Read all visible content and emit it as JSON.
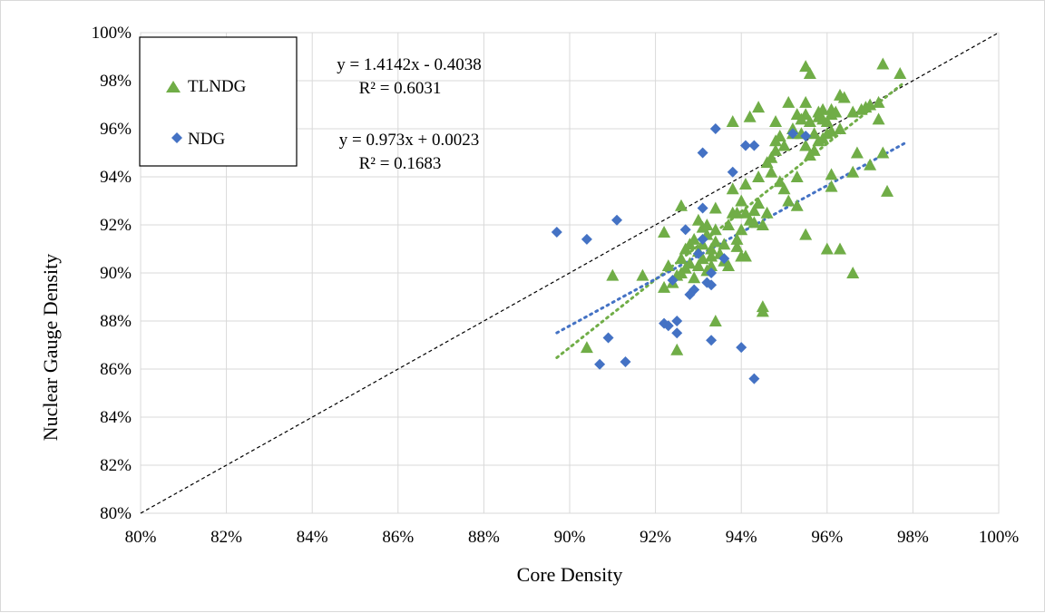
{
  "chart_data": {
    "type": "scatter",
    "xlabel": "Core Density",
    "ylabel": "Nuclear Gauge Density",
    "xlim": [
      0.8,
      1.0
    ],
    "ylim": [
      0.8,
      1.0
    ],
    "x_ticks": [
      "80%",
      "82%",
      "84%",
      "86%",
      "88%",
      "90%",
      "92%",
      "94%",
      "96%",
      "98%",
      "100%"
    ],
    "y_ticks": [
      "80%",
      "82%",
      "84%",
      "86%",
      "88%",
      "90%",
      "92%",
      "94%",
      "96%",
      "98%",
      "100%"
    ],
    "grid": true,
    "legend_position": "top-left",
    "colors": {
      "TLNDG": "#70ad47",
      "NDG": "#4472c4",
      "equality": "#000000"
    },
    "series": [
      {
        "name": "TLNDG",
        "marker": "triangle",
        "trendline": {
          "equation": "y = 1.4142x - 0.4038",
          "r2": "R² = 0.6031",
          "slope": 1.4142,
          "intercept": -0.4038,
          "x_range": [
            0.897,
            0.978
          ]
        },
        "points": [
          [
            0.904,
            0.869
          ],
          [
            0.91,
            0.899
          ],
          [
            0.917,
            0.899
          ],
          [
            0.922,
            0.894
          ],
          [
            0.922,
            0.917
          ],
          [
            0.923,
            0.903
          ],
          [
            0.924,
            0.896
          ],
          [
            0.925,
            0.899
          ],
          [
            0.925,
            0.868
          ],
          [
            0.926,
            0.928
          ],
          [
            0.926,
            0.906
          ],
          [
            0.926,
            0.9
          ],
          [
            0.927,
            0.91
          ],
          [
            0.927,
            0.902
          ],
          [
            0.928,
            0.912
          ],
          [
            0.928,
            0.904
          ],
          [
            0.929,
            0.898
          ],
          [
            0.929,
            0.914
          ],
          [
            0.93,
            0.922
          ],
          [
            0.93,
            0.909
          ],
          [
            0.93,
            0.903
          ],
          [
            0.931,
            0.906
          ],
          [
            0.931,
            0.912
          ],
          [
            0.931,
            0.919
          ],
          [
            0.932,
            0.901
          ],
          [
            0.932,
            0.916
          ],
          [
            0.932,
            0.92
          ],
          [
            0.933,
            0.907
          ],
          [
            0.933,
            0.91
          ],
          [
            0.933,
            0.903
          ],
          [
            0.934,
            0.913
          ],
          [
            0.934,
            0.927
          ],
          [
            0.934,
            0.918
          ],
          [
            0.934,
            0.88
          ],
          [
            0.935,
            0.908
          ],
          [
            0.936,
            0.905
          ],
          [
            0.936,
            0.912
          ],
          [
            0.937,
            0.903
          ],
          [
            0.937,
            0.92
          ],
          [
            0.938,
            0.925
          ],
          [
            0.938,
            0.963
          ],
          [
            0.938,
            0.935
          ],
          [
            0.939,
            0.911
          ],
          [
            0.939,
            0.914
          ],
          [
            0.939,
            0.925
          ],
          [
            0.94,
            0.907
          ],
          [
            0.94,
            0.918
          ],
          [
            0.94,
            0.93
          ],
          [
            0.941,
            0.925
          ],
          [
            0.941,
            0.907
          ],
          [
            0.941,
            0.937
          ],
          [
            0.942,
            0.965
          ],
          [
            0.942,
            0.922
          ],
          [
            0.943,
            0.921
          ],
          [
            0.943,
            0.926
          ],
          [
            0.944,
            0.929
          ],
          [
            0.944,
            0.969
          ],
          [
            0.944,
            0.94
          ],
          [
            0.945,
            0.92
          ],
          [
            0.945,
            0.886
          ],
          [
            0.945,
            0.884
          ],
          [
            0.946,
            0.925
          ],
          [
            0.946,
            0.946
          ],
          [
            0.947,
            0.948
          ],
          [
            0.947,
            0.942
          ],
          [
            0.948,
            0.951
          ],
          [
            0.948,
            0.955
          ],
          [
            0.948,
            0.963
          ],
          [
            0.949,
            0.957
          ],
          [
            0.949,
            0.938
          ],
          [
            0.95,
            0.935
          ],
          [
            0.95,
            0.953
          ],
          [
            0.951,
            0.93
          ],
          [
            0.951,
            0.971
          ],
          [
            0.952,
            0.958
          ],
          [
            0.952,
            0.96
          ],
          [
            0.953,
            0.928
          ],
          [
            0.953,
            0.94
          ],
          [
            0.953,
            0.966
          ],
          [
            0.954,
            0.958
          ],
          [
            0.954,
            0.964
          ],
          [
            0.955,
            0.916
          ],
          [
            0.955,
            0.971
          ],
          [
            0.955,
            0.966
          ],
          [
            0.955,
            0.953
          ],
          [
            0.955,
            0.986
          ],
          [
            0.956,
            0.983
          ],
          [
            0.956,
            0.949
          ],
          [
            0.956,
            0.963
          ],
          [
            0.957,
            0.951
          ],
          [
            0.957,
            0.958
          ],
          [
            0.958,
            0.967
          ],
          [
            0.958,
            0.965
          ],
          [
            0.958,
            0.955
          ],
          [
            0.959,
            0.968
          ],
          [
            0.959,
            0.964
          ],
          [
            0.959,
            0.956
          ],
          [
            0.96,
            0.91
          ],
          [
            0.96,
            0.958
          ],
          [
            0.96,
            0.963
          ],
          [
            0.961,
            0.966
          ],
          [
            0.961,
            0.968
          ],
          [
            0.961,
            0.959
          ],
          [
            0.961,
            0.941
          ],
          [
            0.961,
            0.936
          ],
          [
            0.962,
            0.967
          ],
          [
            0.963,
            0.96
          ],
          [
            0.963,
            0.91
          ],
          [
            0.963,
            0.974
          ],
          [
            0.964,
            0.973
          ],
          [
            0.966,
            0.967
          ],
          [
            0.966,
            0.942
          ],
          [
            0.966,
            0.9
          ],
          [
            0.967,
            0.95
          ],
          [
            0.968,
            0.968
          ],
          [
            0.969,
            0.969
          ],
          [
            0.97,
            0.945
          ],
          [
            0.97,
            0.97
          ],
          [
            0.972,
            0.971
          ],
          [
            0.972,
            0.964
          ],
          [
            0.973,
            0.987
          ],
          [
            0.973,
            0.95
          ],
          [
            0.974,
            0.934
          ],
          [
            0.977,
            0.983
          ]
        ]
      },
      {
        "name": "NDG",
        "marker": "diamond",
        "trendline": {
          "equation": "y = 0.973x + 0.0023",
          "r2": "R² = 0.1683",
          "slope": 0.973,
          "intercept": 0.0023,
          "x_range": [
            0.897,
            0.978
          ]
        },
        "points": [
          [
            0.897,
            0.917
          ],
          [
            0.904,
            0.914
          ],
          [
            0.907,
            0.862
          ],
          [
            0.909,
            0.873
          ],
          [
            0.911,
            0.922
          ],
          [
            0.913,
            0.863
          ],
          [
            0.922,
            0.879
          ],
          [
            0.923,
            0.878
          ],
          [
            0.924,
            0.897
          ],
          [
            0.925,
            0.88
          ],
          [
            0.925,
            0.875
          ],
          [
            0.927,
            0.918
          ],
          [
            0.928,
            0.891
          ],
          [
            0.929,
            0.893
          ],
          [
            0.93,
            0.908
          ],
          [
            0.931,
            0.914
          ],
          [
            0.931,
            0.927
          ],
          [
            0.931,
            0.95
          ],
          [
            0.932,
            0.896
          ],
          [
            0.933,
            0.872
          ],
          [
            0.933,
            0.895
          ],
          [
            0.933,
            0.9
          ],
          [
            0.934,
            0.96
          ],
          [
            0.936,
            0.906
          ],
          [
            0.938,
            0.942
          ],
          [
            0.94,
            0.869
          ],
          [
            0.941,
            0.953
          ],
          [
            0.943,
            0.856
          ],
          [
            0.943,
            0.953
          ],
          [
            0.952,
            0.958
          ],
          [
            0.955,
            0.957
          ]
        ]
      },
      {
        "name": "",
        "type": "equality-line",
        "x": [
          0.8,
          1.0
        ],
        "y": [
          0.8,
          1.0
        ]
      }
    ]
  }
}
